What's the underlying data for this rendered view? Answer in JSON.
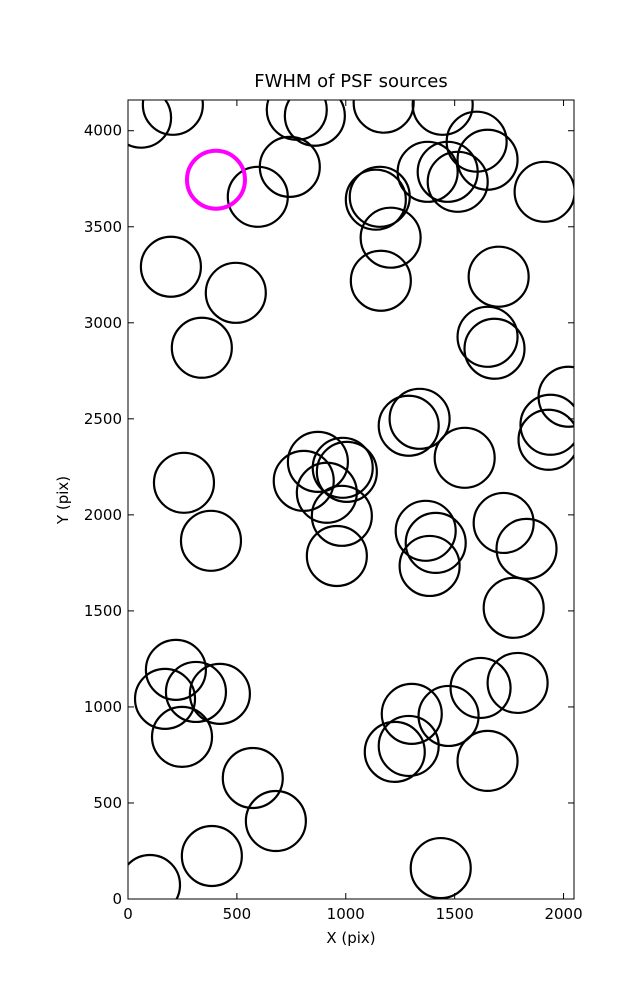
{
  "chart_data": {
    "type": "scatter",
    "title": "FWHM of PSF sources",
    "x_label": "X (pix)",
    "y_label": "Y (pix)",
    "xlim": [
      0,
      2048
    ],
    "ylim": [
      0,
      4160
    ],
    "xticks": [
      0,
      500,
      1000,
      1500,
      2000
    ],
    "yticks": [
      0,
      500,
      1000,
      1500,
      2000,
      2500,
      3000,
      3500,
      4000
    ],
    "series": [
      {
        "color": "#000000",
        "x": [
          60,
          206,
          596,
          743,
          775,
          858,
          1174,
          1445,
          1601,
          1651,
          1138,
          1156,
          1376,
          1468,
          1514,
          1913,
          1206,
          1161,
          1702,
          197,
          495,
          339,
          1651,
          1683,
          2023,
          1940,
          1931,
          1339,
          1289,
          1546,
          872,
          986,
          1005,
          807,
          913,
          982,
          257,
          381,
          959,
          1367,
          1413,
          1385,
          1725,
          1830,
          1771,
          220,
          170,
          312,
          422,
          248,
          573,
          679,
          385,
          101,
          1436,
          1225,
          1289,
          1303,
          1472,
          1619,
          1789,
          1651
        ],
        "values": [
          4068,
          4135,
          3656,
          3812,
          4109,
          4078,
          4146,
          4135,
          3943,
          3849,
          3641,
          3656,
          3786,
          3786,
          3734,
          3682,
          3443,
          3219,
          3240,
          3292,
          3156,
          2870,
          2927,
          2865,
          2615,
          2469,
          2391,
          2500,
          2464,
          2297,
          2276,
          2245,
          2224,
          2177,
          2115,
          1995,
          2167,
          1865,
          1786,
          1917,
          1854,
          1734,
          1958,
          1823,
          1516,
          1193,
          1042,
          1078,
          1068,
          844,
          630,
          406,
          224,
          73,
          161,
          766,
          797,
          964,
          953,
          1099,
          1125,
          719
        ]
      },
      {
        "color": "#ff00ff",
        "x": [
          404
        ],
        "values": [
          3745
        ]
      }
    ]
  }
}
